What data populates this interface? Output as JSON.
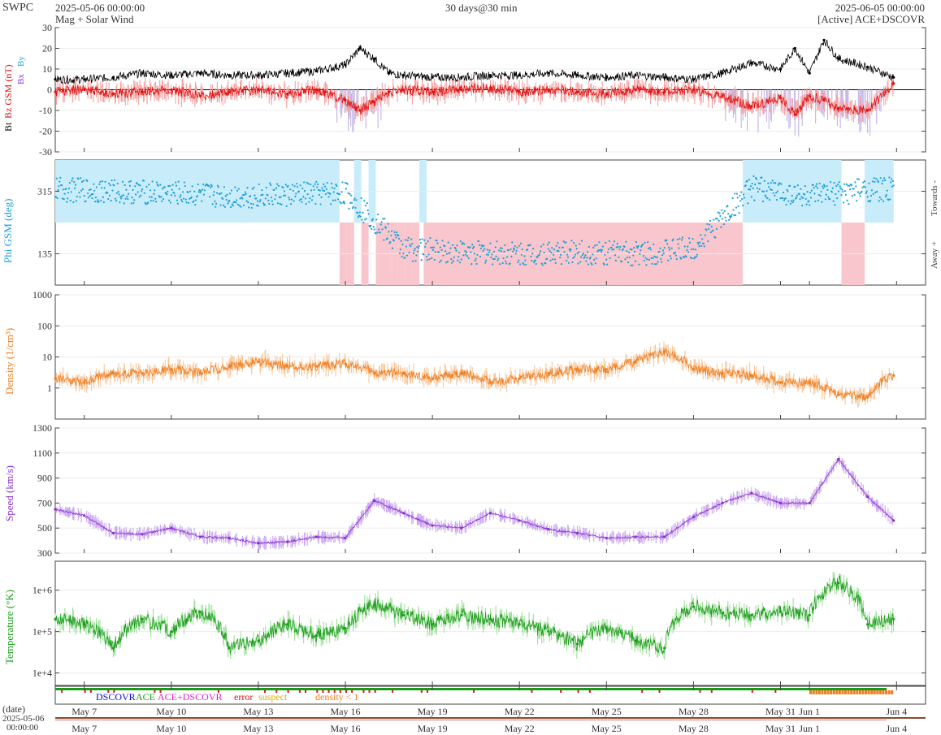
{
  "header": {
    "org": "SWPC",
    "start": "2025-05-06 00:00:00",
    "product": "Mag + Solar Wind",
    "span": "30 days@30 min",
    "end": "2025-06-05 00:00:00",
    "source": "[Active] ACE+DSCOVR"
  },
  "legend": {
    "dscovr": "DSCOVR",
    "ace": "ACE",
    "combined": "ACE+DSCOVR",
    "error": "error",
    "suspect": "suspect",
    "density_low": "density < 1"
  },
  "time_axis": {
    "date_label": "(date)",
    "start_date": "2025-05-06",
    "start_time": "00:00:00",
    "ticks": [
      "May 7",
      "May 10",
      "May 13",
      "May 16",
      "May 19",
      "May 22",
      "May 25",
      "May 28",
      "May 31",
      "Jun 1",
      "Jun 4"
    ],
    "tick_days": [
      1,
      4,
      7,
      10,
      13,
      16,
      19,
      22,
      25,
      26,
      29
    ],
    "data_end_day": 28.9
  },
  "colors": {
    "bt": "#000000",
    "bz": "#e01010",
    "bz_fill": "#c8b8e8",
    "phi": "#1e9fd8",
    "towards": "#c8ecfa",
    "away": "#f8c6cc",
    "density": "#f07e20",
    "density_fill": "#f8c69a",
    "speed": "#8a2fd2",
    "speed_fill": "#cca8ef",
    "temp": "#1e9e1e",
    "temp_fill": "#9fe09a",
    "dscovr": "#0a0ad0",
    "ace": "#1a9a1a",
    "combined": "#e020c8",
    "error": "#e01010",
    "suspect": "#e8c020",
    "dens_low": "#f07e20"
  },
  "chart_data": [
    {
      "type": "line",
      "name": "mag",
      "ylabel_parts": [
        "Bt",
        "Bz GSM (nT)"
      ],
      "legend_glyphs": [
        "Bx",
        "By"
      ],
      "ylim": [
        -30,
        30
      ],
      "yticks": [
        -30,
        -20,
        -10,
        0,
        10,
        20,
        30
      ],
      "x": [
        0,
        1,
        2,
        3,
        4,
        5,
        6,
        7,
        8,
        9,
        10,
        10.5,
        11,
        11.5,
        12,
        13,
        14,
        15,
        16,
        17,
        18,
        19,
        20,
        21,
        22,
        23,
        24,
        25,
        25.5,
        26,
        26.5,
        27,
        28,
        28.9
      ],
      "series": [
        {
          "name": "Bt",
          "values": [
            5,
            5,
            6,
            8,
            7,
            8,
            7,
            7,
            8,
            9,
            12,
            20,
            15,
            8,
            7,
            6,
            6,
            7,
            7,
            8,
            7,
            6,
            7,
            6,
            5,
            8,
            13,
            10,
            20,
            8,
            24,
            15,
            11,
            6
          ]
        },
        {
          "name": "Bz",
          "values": [
            -1,
            0,
            -2,
            -1,
            0,
            -3,
            -1,
            0,
            -2,
            0,
            -5,
            -10,
            -6,
            -1,
            0,
            -1,
            0,
            1,
            -1,
            0,
            -1,
            -2,
            0,
            -1,
            0,
            -3,
            -8,
            -4,
            -12,
            -3,
            -5,
            -9,
            -10,
            3
          ]
        }
      ]
    },
    {
      "type": "scatter",
      "name": "phi",
      "ylabel": "Phi GSM (deg)",
      "right_labels": [
        "Towards -",
        "Away +"
      ],
      "ylim": [
        45,
        405
      ],
      "yticks": [
        135,
        315
      ],
      "sectors": [
        {
          "start": 0,
          "end": 9.3,
          "polarity": "towards"
        },
        {
          "start": 9.3,
          "end": 12.7,
          "polarity": "mixed"
        },
        {
          "start": 12.7,
          "end": 23.7,
          "polarity": "away"
        },
        {
          "start": 23.7,
          "end": 27.1,
          "polarity": "towards"
        },
        {
          "start": 27.1,
          "end": 27.9,
          "polarity": "away"
        },
        {
          "start": 27.9,
          "end": 28.9,
          "polarity": "towards"
        }
      ],
      "x": [
        0,
        2,
        4,
        6,
        8,
        10,
        12,
        14,
        16,
        18,
        20,
        22,
        24,
        26,
        28
      ],
      "values": [
        320,
        315,
        310,
        300,
        305,
        310,
        150,
        140,
        135,
        140,
        135,
        150,
        325,
        300,
        320
      ]
    },
    {
      "type": "line",
      "name": "density",
      "ylabel": "Density (1/cm³)",
      "yscale": "log",
      "ylim": [
        0.1,
        1000
      ],
      "ytick_labels": [
        "1",
        "10",
        "100",
        "1000"
      ],
      "ytick_values": [
        1,
        10,
        100,
        1000
      ],
      "x": [
        0,
        1,
        2,
        3,
        4,
        5,
        6,
        7,
        8,
        9,
        10,
        11,
        12,
        13,
        14,
        15,
        16,
        17,
        18,
        19,
        20,
        21,
        22,
        23,
        24,
        25,
        26,
        27,
        28,
        28.9
      ],
      "values": [
        2,
        1.5,
        3,
        3,
        4,
        3,
        5,
        7,
        5,
        5,
        6,
        3,
        3,
        2,
        3,
        1.5,
        2,
        3,
        4,
        4,
        7,
        15,
        4,
        3,
        2.5,
        1.5,
        1.5,
        0.6,
        0.5,
        2.5
      ]
    },
    {
      "type": "line",
      "name": "speed",
      "ylabel": "Speed (km/s)",
      "ylim": [
        300,
        1300
      ],
      "yticks": [
        300,
        500,
        700,
        900,
        1100,
        1300
      ],
      "x": [
        0,
        1,
        2,
        3,
        4,
        5,
        6,
        7,
        8,
        9,
        10,
        11,
        12,
        13,
        14,
        15,
        16,
        17,
        18,
        19,
        20,
        21,
        22,
        23,
        24,
        25,
        26,
        27,
        28,
        28.9
      ],
      "values": [
        650,
        600,
        460,
        450,
        500,
        430,
        420,
        380,
        390,
        430,
        420,
        720,
        620,
        520,
        500,
        620,
        560,
        490,
        460,
        420,
        430,
        430,
        590,
        700,
        780,
        700,
        700,
        1050,
        750,
        560
      ]
    },
    {
      "type": "line",
      "name": "temperature",
      "ylabel": "Temperature (°K)",
      "yscale": "log",
      "ylim": [
        5000,
        5000000
      ],
      "ytick_labels": [
        "1e+4",
        "1e+5",
        "1e+6"
      ],
      "ytick_values": [
        10000,
        100000,
        1000000
      ],
      "x": [
        0,
        1,
        2,
        3,
        4,
        5,
        6,
        7,
        8,
        9,
        10,
        11,
        12,
        13,
        14,
        15,
        16,
        17,
        18,
        19,
        20,
        21,
        22,
        23,
        24,
        25,
        26,
        27,
        28,
        28.9
      ],
      "values": [
        200000,
        150000,
        40000,
        200000,
        100000,
        300000,
        40000,
        60000,
        150000,
        80000,
        120000,
        450000,
        250000,
        150000,
        250000,
        200000,
        150000,
        100000,
        50000,
        120000,
        60000,
        40000,
        400000,
        280000,
        250000,
        300000,
        250000,
        1500000,
        150000,
        200000
      ]
    }
  ]
}
